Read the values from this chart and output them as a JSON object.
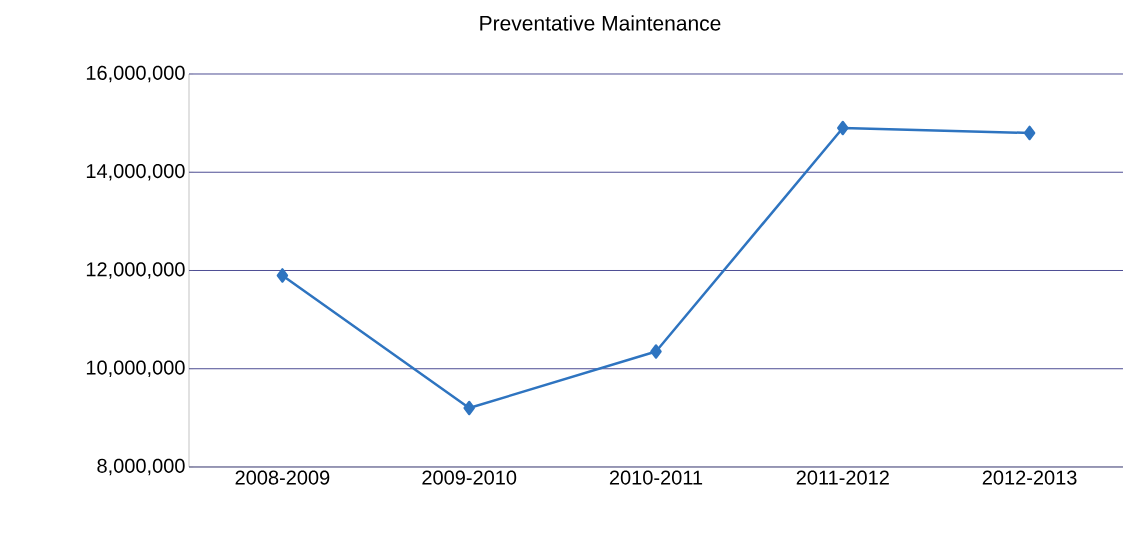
{
  "chart_data": {
    "type": "line",
    "title": "Preventative Maintenance",
    "categories": [
      "2008-2009",
      "2009-2010",
      "2010-2011",
      "2011-2012",
      "2012-2013"
    ],
    "values": [
      11900000,
      9200000,
      10350000,
      14900000,
      14800000
    ],
    "color": "#2e74c0",
    "marker": "diamond",
    "grid": "y",
    "ylim": [
      8000000,
      16000000
    ],
    "yticks": [
      {
        "value": 8000000,
        "label": "8,000,000"
      },
      {
        "value": 10000000,
        "label": "10,000,000"
      },
      {
        "value": 12000000,
        "label": "12,000,000"
      },
      {
        "value": 14000000,
        "label": "14,000,000"
      },
      {
        "value": 16000000,
        "label": "16,000,000"
      }
    ]
  }
}
